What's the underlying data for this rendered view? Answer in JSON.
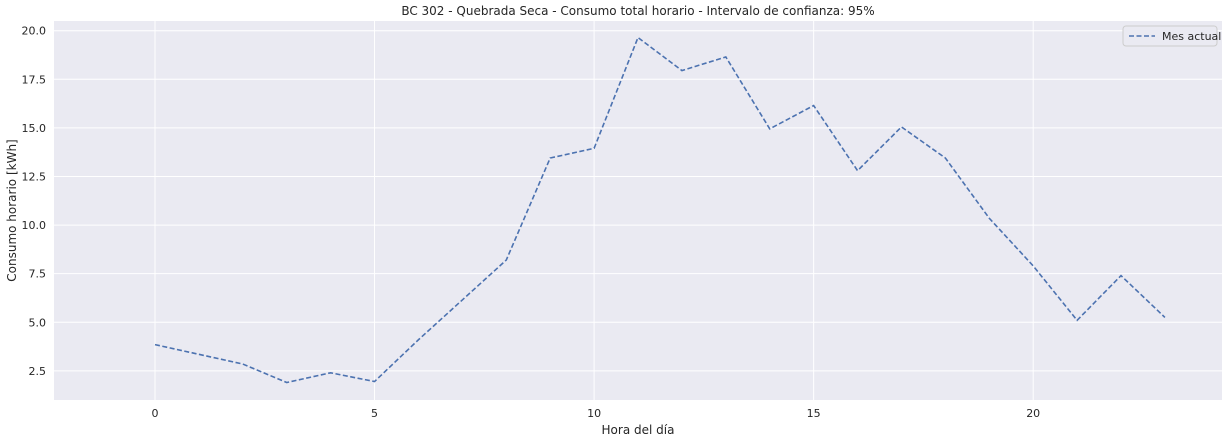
{
  "chart_data": {
    "type": "line",
    "title": "BC 302 - Quebrada Seca - Consumo total horario - Intervalo de confianza: 95%",
    "xlabel": "Hora del día",
    "ylabel": "Consumo horario [kWh]",
    "xlim": [
      -2.3,
      24.3
    ],
    "ylim": [
      1.0,
      20.5
    ],
    "x_ticks": [
      0,
      5,
      10,
      15,
      20
    ],
    "y_ticks": [
      2.5,
      5.0,
      7.5,
      10.0,
      12.5,
      15.0,
      17.5,
      20.0
    ],
    "grid": true,
    "legend_position": "top-right",
    "background_color": "#eaeaf2",
    "grid_color": "#ffffff",
    "series": [
      {
        "name": "Mes actual",
        "color": "#4c72b0",
        "line_style": "dashed",
        "x": [
          0,
          1,
          2,
          3,
          4,
          5,
          6,
          7,
          8,
          9,
          10,
          11,
          12,
          13,
          14,
          15,
          16,
          17,
          18,
          19,
          20,
          21,
          22,
          23
        ],
        "y": [
          3.85,
          3.35,
          2.85,
          1.9,
          2.4,
          1.95,
          4.1,
          6.15,
          8.2,
          13.45,
          13.95,
          19.65,
          17.95,
          18.65,
          14.95,
          16.15,
          12.8,
          15.05,
          13.45,
          10.35,
          7.9,
          5.1,
          7.4,
          5.25
        ]
      }
    ]
  }
}
